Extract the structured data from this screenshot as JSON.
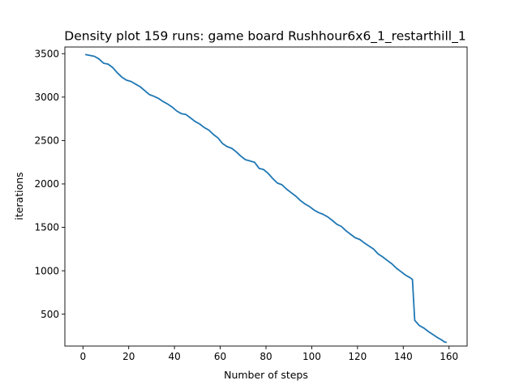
{
  "chart_data": {
    "type": "line",
    "title": "Density plot 159 runs: game board Rushhour6x6_1_restarthill_1",
    "xlabel": "Number of steps",
    "ylabel": "iterations",
    "xlim": [
      -7.9,
      167.9
    ],
    "ylim": [
      133,
      3577
    ],
    "xticks": [
      0,
      20,
      40,
      60,
      80,
      100,
      120,
      140,
      160
    ],
    "yticks": [
      500,
      1000,
      1500,
      2000,
      2500,
      3000,
      3500
    ],
    "color": "#1f77b4",
    "grid": false,
    "series": [
      {
        "x": [
          1,
          3,
          5,
          7,
          9,
          11,
          13,
          15,
          17,
          19,
          21,
          23,
          25,
          27,
          29,
          31,
          33,
          35,
          37,
          39,
          41,
          43,
          45,
          47,
          49,
          51,
          53,
          55,
          57,
          59,
          61,
          63,
          65,
          67,
          69,
          71,
          73,
          75,
          77,
          79,
          81,
          83,
          85,
          87,
          89,
          91,
          93,
          95,
          97,
          99,
          101,
          103,
          105,
          107,
          109,
          111,
          113,
          115,
          117,
          119,
          121,
          123,
          125,
          127,
          129,
          131,
          133,
          135,
          137,
          139,
          141,
          143,
          144,
          145,
          147,
          149,
          151,
          153,
          155,
          157,
          158,
          159
        ],
        "y": [
          3490,
          3480,
          3470,
          3440,
          3390,
          3380,
          3340,
          3280,
          3230,
          3195,
          3180,
          3150,
          3120,
          3075,
          3030,
          3010,
          2985,
          2950,
          2920,
          2885,
          2840,
          2810,
          2800,
          2760,
          2720,
          2690,
          2650,
          2620,
          2570,
          2530,
          2465,
          2430,
          2410,
          2370,
          2320,
          2280,
          2265,
          2250,
          2180,
          2165,
          2120,
          2060,
          2010,
          1990,
          1940,
          1900,
          1860,
          1810,
          1770,
          1740,
          1700,
          1670,
          1650,
          1620,
          1580,
          1535,
          1510,
          1460,
          1420,
          1380,
          1360,
          1320,
          1285,
          1250,
          1195,
          1160,
          1120,
          1080,
          1030,
          990,
          950,
          920,
          900,
          430,
          370,
          340,
          300,
          265,
          230,
          200,
          180,
          175
        ]
      }
    ]
  }
}
